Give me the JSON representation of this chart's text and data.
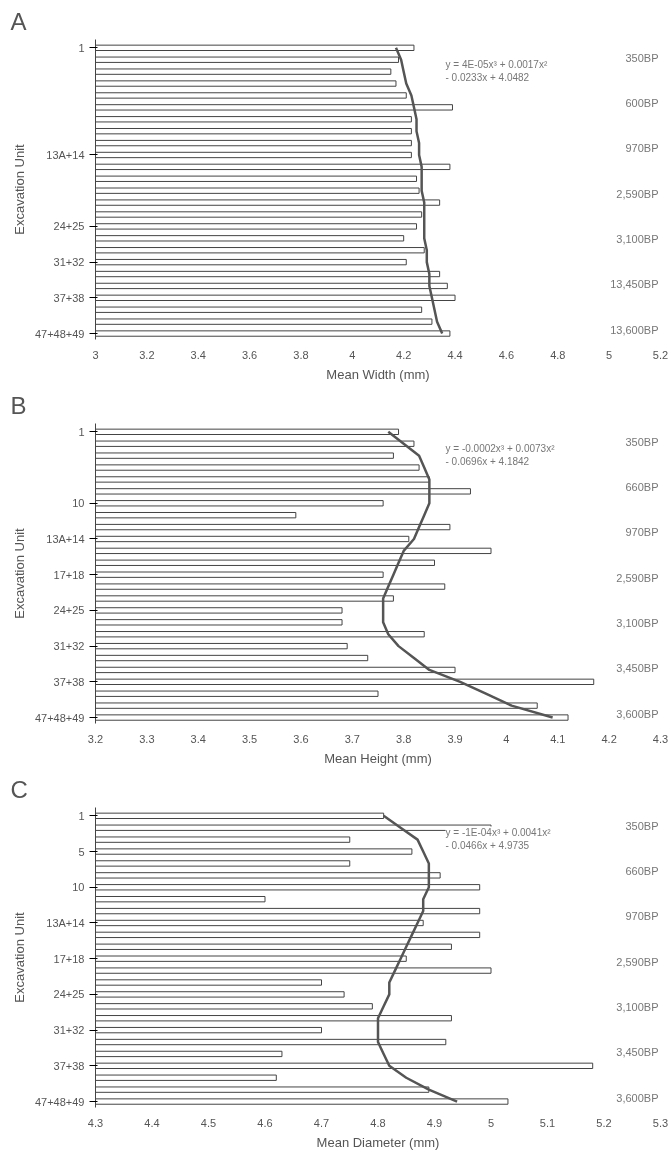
{
  "chart_data": [
    {
      "type": "bar",
      "orientation": "horizontal",
      "title": "A",
      "xlabel": "Mean Width (mm)",
      "ylabel": "Excavation Unit",
      "grid": false,
      "categories": [
        "1",
        null,
        null,
        null,
        null,
        null,
        null,
        null,
        null,
        "13A+14",
        null,
        null,
        null,
        null,
        null,
        "24+25",
        null,
        null,
        "31+32",
        null,
        null,
        "37+38",
        null,
        null,
        "47+48+49"
      ],
      "xlim": [
        3.0,
        5.2
      ],
      "xticks": [
        3.0,
        3.2,
        3.4,
        3.6,
        3.8,
        4.0,
        4.2,
        4.4,
        4.6,
        4.8,
        5.0,
        5.2
      ],
      "series": [
        {
          "color": "#ffffff",
          "values": [
            4.24,
            4.18,
            4.15,
            4.17,
            4.21,
            4.39,
            4.23,
            4.23,
            4.23,
            4.23,
            4.38,
            4.25,
            4.26,
            4.34,
            4.27,
            4.25,
            4.2,
            4.28,
            4.21,
            4.34,
            4.37,
            4.4,
            4.27,
            4.31,
            4.38
          ]
        },
        {
          "type": "line",
          "color": "#555555",
          "values": [
            4.17,
            4.19,
            4.2,
            4.21,
            4.23,
            4.24,
            4.25,
            4.25,
            4.26,
            4.26,
            4.27,
            4.27,
            4.27,
            4.28,
            4.28,
            4.28,
            4.28,
            4.29,
            4.29,
            4.3,
            4.3,
            4.31,
            4.32,
            4.33,
            4.35
          ]
        }
      ],
      "annotations": [
        "y = 4E-05x³ + 0.0017x² - 0.0233x + 4.0482",
        "350BP",
        "600BP",
        "970BP",
        "2,590BP",
        "3,100BP",
        "13,450BP",
        "13,600BP"
      ]
    },
    {
      "type": "bar",
      "orientation": "horizontal",
      "title": "B",
      "xlabel": "Mean Height (mm)",
      "ylabel": "Excavation Unit",
      "grid": false,
      "categories": [
        "1",
        null,
        null,
        null,
        null,
        null,
        "10",
        null,
        null,
        "13A+14",
        null,
        null,
        "17+18",
        null,
        null,
        "24+25",
        null,
        null,
        "31+32",
        null,
        null,
        "37+38",
        null,
        null,
        "47+48+49"
      ],
      "xlim": [
        3.2,
        4.3
      ],
      "xticks": [
        3.2,
        3.3,
        3.4,
        3.5,
        3.6,
        3.7,
        3.8,
        3.9,
        4,
        4.1,
        4.2,
        4.3
      ],
      "series": [
        {
          "color": "#ffffff",
          "values": [
            3.79,
            3.82,
            3.78,
            3.83,
            3.85,
            3.93,
            3.76,
            3.59,
            3.89,
            3.81,
            3.97,
            3.86,
            3.76,
            3.88,
            3.78,
            3.68,
            3.68,
            3.84,
            3.69,
            3.73,
            3.9,
            4.17,
            3.75,
            4.06,
            4.12
          ]
        },
        {
          "type": "line",
          "color": "#555555",
          "values": [
            3.77,
            3.8,
            3.83,
            3.84,
            3.85,
            3.85,
            3.85,
            3.84,
            3.83,
            3.82,
            3.8,
            3.79,
            3.78,
            3.77,
            3.76,
            3.76,
            3.76,
            3.77,
            3.79,
            3.82,
            3.85,
            3.91,
            3.96,
            4.01,
            4.09
          ]
        }
      ],
      "annotations": [
        "y = -0.0002x³ + 0.0073x² - 0.0696x + 4.1842",
        "350BP",
        "660BP",
        "970BP",
        "2,590BP",
        "3,100BP",
        "3,450BP",
        "3,600BP"
      ]
    },
    {
      "type": "bar",
      "orientation": "horizontal",
      "title": "C",
      "xlabel": "Mean Diameter (mm)",
      "ylabel": "Excavation Unit",
      "grid": false,
      "categories": [
        "1",
        null,
        null,
        "5",
        null,
        null,
        "10",
        null,
        null,
        "13A+14",
        null,
        null,
        "17+18",
        null,
        null,
        "24+25",
        null,
        null,
        "31+32",
        null,
        null,
        "37+38",
        null,
        null,
        "47+48+49"
      ],
      "xlim": [
        4.3,
        5.3
      ],
      "xticks": [
        4.3,
        4.4,
        4.5,
        4.6,
        4.7,
        4.8,
        4.9,
        5,
        5.1,
        5.2,
        5.3
      ],
      "series": [
        {
          "color": "#ffffff",
          "values": [
            4.81,
            5.0,
            4.75,
            4.86,
            4.75,
            4.91,
            4.98,
            4.6,
            4.98,
            4.88,
            4.98,
            4.93,
            4.85,
            5.0,
            4.7,
            4.74,
            4.79,
            4.93,
            4.7,
            4.92,
            4.63,
            5.18,
            4.62,
            4.89,
            5.03
          ]
        },
        {
          "type": "line",
          "color": "#555555",
          "values": [
            4.81,
            4.84,
            4.87,
            4.88,
            4.89,
            4.89,
            4.89,
            4.88,
            4.88,
            4.87,
            4.86,
            4.85,
            4.84,
            4.83,
            4.82,
            4.82,
            4.81,
            4.8,
            4.8,
            4.8,
            4.81,
            4.82,
            4.85,
            4.89,
            4.94
          ]
        }
      ],
      "annotations": [
        "y = -1E-04x³ + 0.0041x² - 0.0466x + 4.9735",
        "350BP",
        "660BP",
        "970BP",
        "2,590BP",
        "3,100BP",
        "3,450BP",
        "3,600BP"
      ]
    }
  ]
}
